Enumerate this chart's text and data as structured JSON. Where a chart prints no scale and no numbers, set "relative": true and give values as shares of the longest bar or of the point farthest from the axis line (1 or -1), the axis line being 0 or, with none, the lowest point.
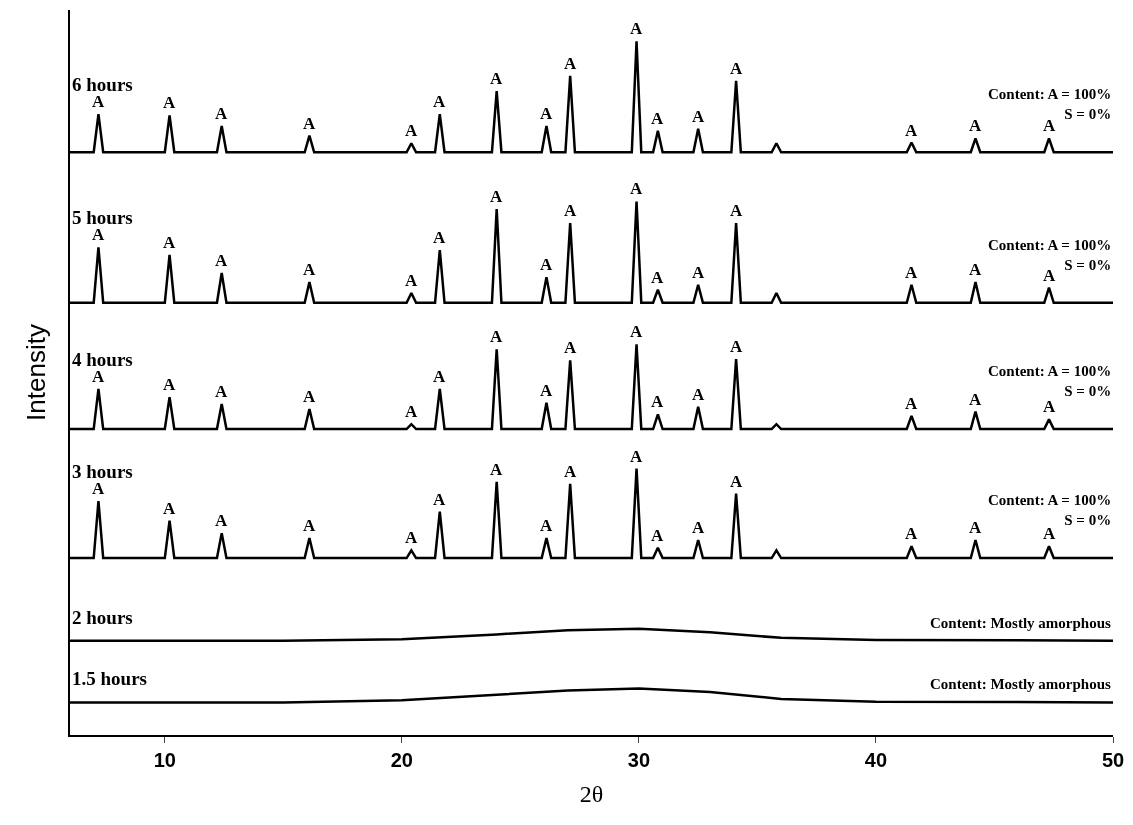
{
  "chart_data": {
    "type": "line",
    "relative": true,
    "xlabel": "2θ",
    "ylabel": "Intensity",
    "xlim": [
      6,
      50
    ],
    "xticks": [
      10,
      20,
      30,
      40,
      50
    ],
    "legend": false,
    "marker": "none",
    "line_style": "solid",
    "series": [
      {
        "name": "6 hours",
        "color": "#000000",
        "x": [
          6,
          7.0,
          7.2,
          7.4,
          10.0,
          10.2,
          10.4,
          12.2,
          12.4,
          12.6,
          15.9,
          16.1,
          16.3,
          20.2,
          20.4,
          20.6,
          21.4,
          21.6,
          21.8,
          23.8,
          24.0,
          24.2,
          25.9,
          26.1,
          26.3,
          26.9,
          27.1,
          27.3,
          29.7,
          29.9,
          30.1,
          30.6,
          30.8,
          31.0,
          32.3,
          32.5,
          32.7,
          33.9,
          34.1,
          34.3,
          35.6,
          35.8,
          36.0,
          41.3,
          41.5,
          41.7,
          44.0,
          44.2,
          44.4,
          47.1,
          47.3,
          47.5,
          50
        ],
        "values": [
          0.84,
          0.84,
          0.895,
          0.84,
          0.84,
          0.893,
          0.84,
          0.84,
          0.878,
          0.84,
          0.84,
          0.864,
          0.84,
          0.84,
          0.853,
          0.84,
          0.84,
          0.895,
          0.84,
          0.84,
          0.928,
          0.84,
          0.84,
          0.878,
          0.84,
          0.84,
          0.95,
          0.84,
          0.84,
          1.0,
          0.84,
          0.84,
          0.871,
          0.84,
          0.84,
          0.874,
          0.84,
          0.84,
          0.943,
          0.84,
          0.84,
          0.853,
          0.84,
          0.84,
          0.854,
          0.84,
          0.84,
          0.86,
          0.84,
          0.84,
          0.86,
          0.84,
          0.84
        ]
      },
      {
        "name": "5 hours",
        "color": "#000000",
        "x": [
          6,
          7.0,
          7.2,
          7.4,
          10.0,
          10.2,
          10.4,
          12.2,
          12.4,
          12.6,
          15.9,
          16.1,
          16.3,
          20.2,
          20.4,
          20.6,
          21.4,
          21.6,
          21.8,
          23.8,
          24.0,
          24.2,
          25.9,
          26.1,
          26.3,
          26.9,
          27.1,
          27.3,
          29.7,
          29.9,
          30.1,
          30.6,
          30.8,
          31.0,
          32.3,
          32.5,
          32.7,
          33.9,
          34.1,
          34.3,
          35.6,
          35.8,
          36.0,
          41.3,
          41.5,
          41.7,
          44.0,
          44.2,
          44.4,
          47.1,
          47.3,
          47.5,
          50
        ],
        "values": [
          0.623,
          0.623,
          0.703,
          0.623,
          0.623,
          0.692,
          0.623,
          0.623,
          0.666,
          0.623,
          0.623,
          0.653,
          0.623,
          0.623,
          0.637,
          0.623,
          0.623,
          0.699,
          0.623,
          0.623,
          0.758,
          0.623,
          0.623,
          0.66,
          0.623,
          0.623,
          0.738,
          0.623,
          0.623,
          0.769,
          0.623,
          0.623,
          0.642,
          0.623,
          0.623,
          0.649,
          0.623,
          0.623,
          0.738,
          0.623,
          0.623,
          0.637,
          0.623,
          0.623,
          0.649,
          0.623,
          0.623,
          0.653,
          0.623,
          0.623,
          0.645,
          0.623,
          0.623
        ]
      },
      {
        "name": "4 hours",
        "color": "#000000",
        "x": [
          6,
          7.0,
          7.2,
          7.4,
          10.0,
          10.2,
          10.4,
          12.2,
          12.4,
          12.6,
          15.9,
          16.1,
          16.3,
          20.2,
          20.4,
          20.6,
          21.4,
          21.6,
          21.8,
          23.8,
          24.0,
          24.2,
          25.9,
          26.1,
          26.3,
          26.9,
          27.1,
          27.3,
          29.7,
          29.9,
          30.1,
          30.6,
          30.8,
          31.0,
          32.3,
          32.5,
          32.7,
          33.9,
          34.1,
          34.3,
          35.6,
          35.8,
          36.0,
          41.3,
          41.5,
          41.7,
          44.0,
          44.2,
          44.4,
          47.1,
          47.3,
          47.5,
          50
        ],
        "values": [
          0.441,
          0.441,
          0.499,
          0.441,
          0.441,
          0.487,
          0.441,
          0.441,
          0.477,
          0.441,
          0.441,
          0.47,
          0.441,
          0.441,
          0.448,
          0.441,
          0.441,
          0.499,
          0.441,
          0.441,
          0.556,
          0.441,
          0.441,
          0.479,
          0.441,
          0.441,
          0.54,
          0.441,
          0.441,
          0.563,
          0.441,
          0.441,
          0.462,
          0.441,
          0.441,
          0.473,
          0.441,
          0.441,
          0.542,
          0.441,
          0.441,
          0.448,
          0.441,
          0.441,
          0.46,
          0.441,
          0.441,
          0.466,
          0.441,
          0.441,
          0.455,
          0.441,
          0.441
        ]
      },
      {
        "name": "3 hours",
        "color": "#000000",
        "x": [
          6,
          7.0,
          7.2,
          7.4,
          10.0,
          10.2,
          10.4,
          12.2,
          12.4,
          12.6,
          15.9,
          16.1,
          16.3,
          20.2,
          20.4,
          20.6,
          21.4,
          21.6,
          21.8,
          23.8,
          24.0,
          24.2,
          25.9,
          26.1,
          26.3,
          26.9,
          27.1,
          27.3,
          29.7,
          29.9,
          30.1,
          30.6,
          30.8,
          31.0,
          32.3,
          32.5,
          32.7,
          33.9,
          34.1,
          34.3,
          35.6,
          35.8,
          36.0,
          41.3,
          41.5,
          41.7,
          44.0,
          44.2,
          44.4,
          47.1,
          47.3,
          47.5,
          50
        ],
        "values": [
          0.255,
          0.255,
          0.337,
          0.255,
          0.255,
          0.309,
          0.255,
          0.255,
          0.291,
          0.255,
          0.255,
          0.284,
          0.255,
          0.255,
          0.266,
          0.255,
          0.255,
          0.322,
          0.255,
          0.255,
          0.365,
          0.255,
          0.255,
          0.284,
          0.255,
          0.255,
          0.362,
          0.255,
          0.255,
          0.384,
          0.255,
          0.255,
          0.27,
          0.255,
          0.255,
          0.281,
          0.255,
          0.255,
          0.348,
          0.255,
          0.255,
          0.266,
          0.255,
          0.255,
          0.272,
          0.255,
          0.255,
          0.281,
          0.255,
          0.255,
          0.272,
          0.255,
          0.255
        ]
      },
      {
        "name": "2 hours",
        "color": "#000000",
        "x": [
          6,
          15,
          20,
          24,
          27,
          30,
          33,
          36,
          40,
          50
        ],
        "values": [
          0.136,
          0.136,
          0.138,
          0.145,
          0.151,
          0.153,
          0.148,
          0.14,
          0.137,
          0.136
        ]
      },
      {
        "name": "1.5 hours",
        "color": "#000000",
        "x": [
          6,
          15,
          20,
          24,
          27,
          30,
          33,
          36,
          40,
          50
        ],
        "values": [
          0.047,
          0.047,
          0.05,
          0.058,
          0.064,
          0.067,
          0.062,
          0.052,
          0.048,
          0.047
        ]
      }
    ],
    "annotations": [
      "Content: A = 100%\nS = 0%",
      "Content: A = 100%\nS = 0%",
      "Content: A = 100%\nS = 0%",
      "Content: A = 100%\nS = 0%",
      "Content: Mostly amorphous",
      "Content: Mostly amorphous",
      {
        "text": "A",
        "x": 7.2,
        "y": 0.895
      },
      {
        "text": "A",
        "x": 10.2,
        "y": 0.893
      },
      {
        "text": "A",
        "x": 12.4,
        "y": 0.878
      },
      {
        "text": "A",
        "x": 16.1,
        "y": 0.864
      },
      {
        "text": "A",
        "x": 20.4,
        "y": 0.853
      },
      {
        "text": "A",
        "x": 21.6,
        "y": 0.895
      },
      {
        "text": "A",
        "x": 24.0,
        "y": 0.928
      },
      {
        "text": "A",
        "x": 26.1,
        "y": 0.878
      },
      {
        "text": "A",
        "x": 27.1,
        "y": 0.95
      },
      {
        "text": "A",
        "x": 29.9,
        "y": 1.0
      },
      {
        "text": "A",
        "x": 30.8,
        "y": 0.871
      },
      {
        "text": "A",
        "x": 32.5,
        "y": 0.874
      },
      {
        "text": "A",
        "x": 34.1,
        "y": 0.943
      },
      {
        "text": "A",
        "x": 41.5,
        "y": 0.854
      },
      {
        "text": "A",
        "x": 44.2,
        "y": 0.86
      },
      {
        "text": "A",
        "x": 47.3,
        "y": 0.86
      },
      {
        "text": "A",
        "x": 7.2,
        "y": 0.703
      },
      {
        "text": "A",
        "x": 10.2,
        "y": 0.692
      },
      {
        "text": "A",
        "x": 12.4,
        "y": 0.666
      },
      {
        "text": "A",
        "x": 16.1,
        "y": 0.653
      },
      {
        "text": "A",
        "x": 20.4,
        "y": 0.637
      },
      {
        "text": "A",
        "x": 21.6,
        "y": 0.699
      },
      {
        "text": "A",
        "x": 24.0,
        "y": 0.758
      },
      {
        "text": "A",
        "x": 26.1,
        "y": 0.66
      },
      {
        "text": "A",
        "x": 27.1,
        "y": 0.738
      },
      {
        "text": "A",
        "x": 29.9,
        "y": 0.769
      },
      {
        "text": "A",
        "x": 30.8,
        "y": 0.642
      },
      {
        "text": "A",
        "x": 32.5,
        "y": 0.649
      },
      {
        "text": "A",
        "x": 34.1,
        "y": 0.738
      },
      {
        "text": "A",
        "x": 41.5,
        "y": 0.649
      },
      {
        "text": "A",
        "x": 44.2,
        "y": 0.653
      },
      {
        "text": "A",
        "x": 47.3,
        "y": 0.645
      },
      {
        "text": "A",
        "x": 7.2,
        "y": 0.499
      },
      {
        "text": "A",
        "x": 10.2,
        "y": 0.487
      },
      {
        "text": "A",
        "x": 12.4,
        "y": 0.477
      },
      {
        "text": "A",
        "x": 16.1,
        "y": 0.47
      },
      {
        "text": "A",
        "x": 20.4,
        "y": 0.448
      },
      {
        "text": "A",
        "x": 21.6,
        "y": 0.499
      },
      {
        "text": "A",
        "x": 24.0,
        "y": 0.556
      },
      {
        "text": "A",
        "x": 26.1,
        "y": 0.479
      },
      {
        "text": "A",
        "x": 27.1,
        "y": 0.54
      },
      {
        "text": "A",
        "x": 29.9,
        "y": 0.563
      },
      {
        "text": "A",
        "x": 30.8,
        "y": 0.462
      },
      {
        "text": "A",
        "x": 32.5,
        "y": 0.473
      },
      {
        "text": "A",
        "x": 34.1,
        "y": 0.542
      },
      {
        "text": "A",
        "x": 41.5,
        "y": 0.46
      },
      {
        "text": "A",
        "x": 44.2,
        "y": 0.466
      },
      {
        "text": "A",
        "x": 47.3,
        "y": 0.455
      },
      {
        "text": "A",
        "x": 7.2,
        "y": 0.337
      },
      {
        "text": "A",
        "x": 10.2,
        "y": 0.309
      },
      {
        "text": "A",
        "x": 12.4,
        "y": 0.291
      },
      {
        "text": "A",
        "x": 16.1,
        "y": 0.284
      },
      {
        "text": "A",
        "x": 20.4,
        "y": 0.266
      },
      {
        "text": "A",
        "x": 21.6,
        "y": 0.322
      },
      {
        "text": "A",
        "x": 24.0,
        "y": 0.365
      },
      {
        "text": "A",
        "x": 26.1,
        "y": 0.284
      },
      {
        "text": "A",
        "x": 27.1,
        "y": 0.362
      },
      {
        "text": "A",
        "x": 29.9,
        "y": 0.384
      },
      {
        "text": "A",
        "x": 30.8,
        "y": 0.27
      },
      {
        "text": "A",
        "x": 32.5,
        "y": 0.281
      },
      {
        "text": "A",
        "x": 34.1,
        "y": 0.348
      },
      {
        "text": "A",
        "x": 41.5,
        "y": 0.272
      },
      {
        "text": "A",
        "x": 44.2,
        "y": 0.281
      },
      {
        "text": "A",
        "x": 47.3,
        "y": 0.272
      }
    ]
  }
}
